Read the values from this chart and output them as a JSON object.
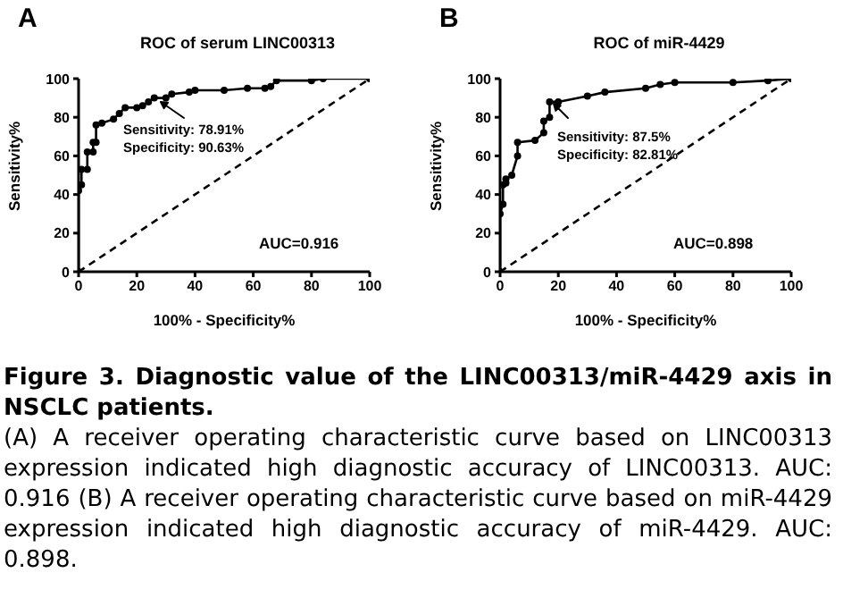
{
  "chart_data": [
    {
      "type": "line",
      "title": "ROC of serum LINC00313",
      "xlabel": "100% - Specificity%",
      "ylabel": "Sensitivity%",
      "xlim": [
        0,
        100
      ],
      "ylim": [
        0,
        100
      ],
      "xticks": [
        0,
        20,
        40,
        60,
        80,
        100
      ],
      "yticks": [
        0,
        20,
        40,
        60,
        80,
        100
      ],
      "annotations": [
        "A",
        "Sensitivity: 78.91%",
        "Specificity: 90.63%",
        "AUC=0.916"
      ],
      "series": [
        {
          "color": "#000000",
          "marker": "circle",
          "line_style": "solid",
          "x": [
            0,
            0,
            1,
            1,
            3,
            3,
            5,
            5,
            6,
            6,
            8,
            12,
            14,
            16,
            20,
            22,
            24,
            26,
            30,
            32,
            38,
            40,
            50,
            58,
            64,
            66,
            68,
            80,
            84,
            100
          ],
          "values": [
            0,
            42,
            45,
            53,
            53,
            62,
            62,
            67,
            67,
            76,
            77,
            79,
            82,
            85,
            85,
            86,
            88,
            90,
            90,
            92,
            93,
            94,
            94,
            95,
            95,
            96,
            99,
            99,
            100,
            100
          ]
        },
        {
          "color": "#000000",
          "marker": "none",
          "line_style": "dashed",
          "x": [
            0,
            100
          ],
          "values": [
            0,
            100
          ]
        }
      ]
    },
    {
      "type": "line",
      "title": "ROC of miR-4429",
      "xlabel": "100% - Specificity%",
      "ylabel": "Sensitivity%",
      "xlim": [
        0,
        100
      ],
      "ylim": [
        0,
        100
      ],
      "xticks": [
        0,
        20,
        40,
        60,
        80,
        100
      ],
      "yticks": [
        0,
        20,
        40,
        60,
        80,
        100
      ],
      "annotations": [
        "B",
        "Sensitivity: 87.5%",
        "Specificity: 82.81%",
        "AUC=0.898"
      ],
      "series": [
        {
          "color": "#000000",
          "marker": "circle",
          "line_style": "solid",
          "x": [
            0,
            0,
            1,
            1,
            2,
            2,
            4,
            6,
            6,
            12,
            15,
            15,
            17,
            17,
            20,
            30,
            36,
            50,
            55,
            60,
            80,
            92,
            100
          ],
          "values": [
            0,
            30,
            35,
            45,
            46,
            48,
            50,
            60,
            67,
            68,
            72,
            78,
            80,
            88,
            88,
            91,
            93,
            95,
            97,
            98,
            98,
            99,
            100
          ]
        },
        {
          "color": "#000000",
          "marker": "none",
          "line_style": "dashed",
          "x": [
            0,
            100
          ],
          "values": [
            0,
            100
          ]
        }
      ]
    },
    {
      "type": "other",
      "title": "Figure 3. Diagnostic value of the LINC00313/miR-4429 axis in NSCLC patients.",
      "annotations": [
        "(A) A receiver operating characteristic curve based on LINC00313 expression indicated high diagnostic accuracy of LINC00313. AUC: 0.916 (B) A receiver operating characteristic curve based on miR-4429 expression indicated high diagnostic accuracy of miR-4429. AUC: 0.898."
      ]
    }
  ]
}
